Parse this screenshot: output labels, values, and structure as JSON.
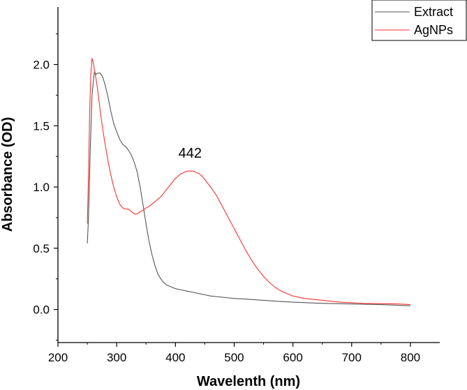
{
  "chart_data": {
    "type": "line",
    "title": "",
    "xlabel": "Wavelenth (nm)",
    "ylabel": "Absorbance (OD)",
    "xlim": [
      200,
      850
    ],
    "ylim": [
      -0.27,
      2.47
    ],
    "xticks": [
      200,
      300,
      400,
      500,
      600,
      700,
      800
    ],
    "xtick_labels": [
      "200",
      "300",
      "400",
      "500",
      "600",
      "700",
      "800"
    ],
    "yticks": [
      0.0,
      0.5,
      1.0,
      1.5,
      2.0
    ],
    "ytick_labels": [
      "0.0",
      "0.5",
      "1.0",
      "1.5",
      "2.0"
    ],
    "grid": false,
    "legend_position": "top-right",
    "annotation": {
      "text": "442",
      "x": 425,
      "y": 1.24
    },
    "colors": {
      "Extract": "#555555",
      "AgNPs": "#ff3030",
      "axis": "#000000"
    },
    "series": [
      {
        "name": "Extract",
        "x": [
          250,
          252,
          255,
          258,
          262,
          265,
          268,
          272,
          276,
          280,
          285,
          290,
          295,
          300,
          305,
          310,
          315,
          320,
          325,
          330,
          335,
          340,
          345,
          350,
          355,
          360,
          365,
          370,
          375,
          380,
          385,
          390,
          395,
          400,
          410,
          420,
          430,
          440,
          450,
          460,
          480,
          500,
          520,
          550,
          580,
          600,
          650,
          700,
          750,
          800
        ],
        "y": [
          0.54,
          0.75,
          1.3,
          1.75,
          1.94,
          1.92,
          1.93,
          1.93,
          1.9,
          1.84,
          1.74,
          1.62,
          1.52,
          1.45,
          1.39,
          1.35,
          1.33,
          1.3,
          1.26,
          1.2,
          1.12,
          1.0,
          0.85,
          0.7,
          0.56,
          0.45,
          0.36,
          0.29,
          0.25,
          0.22,
          0.2,
          0.19,
          0.18,
          0.17,
          0.16,
          0.15,
          0.14,
          0.13,
          0.12,
          0.11,
          0.1,
          0.09,
          0.085,
          0.075,
          0.065,
          0.06,
          0.05,
          0.045,
          0.04,
          0.03
        ]
      },
      {
        "name": "AgNPs",
        "x": [
          250,
          252,
          254,
          256,
          258,
          260,
          262,
          265,
          268,
          272,
          276,
          280,
          285,
          290,
          295,
          300,
          305,
          310,
          315,
          320,
          325,
          330,
          335,
          340,
          345,
          350,
          355,
          360,
          365,
          370,
          375,
          380,
          385,
          390,
          395,
          400,
          405,
          410,
          415,
          420,
          425,
          430,
          435,
          440,
          445,
          450,
          460,
          470,
          480,
          490,
          500,
          510,
          520,
          530,
          540,
          550,
          560,
          570,
          580,
          590,
          600,
          620,
          640,
          660,
          680,
          700,
          720,
          750,
          780,
          800
        ],
        "y": [
          0.7,
          1.1,
          1.6,
          1.92,
          2.05,
          2.02,
          1.96,
          1.88,
          1.78,
          1.62,
          1.48,
          1.36,
          1.22,
          1.1,
          1.0,
          0.92,
          0.86,
          0.83,
          0.82,
          0.82,
          0.8,
          0.78,
          0.78,
          0.8,
          0.81,
          0.83,
          0.84,
          0.86,
          0.88,
          0.9,
          0.92,
          0.95,
          0.98,
          1.01,
          1.04,
          1.07,
          1.09,
          1.11,
          1.12,
          1.13,
          1.13,
          1.13,
          1.12,
          1.11,
          1.09,
          1.06,
          1.0,
          0.93,
          0.84,
          0.75,
          0.66,
          0.57,
          0.48,
          0.4,
          0.33,
          0.27,
          0.22,
          0.18,
          0.15,
          0.13,
          0.11,
          0.09,
          0.08,
          0.07,
          0.06,
          0.055,
          0.05,
          0.048,
          0.045,
          0.04
        ]
      }
    ]
  }
}
